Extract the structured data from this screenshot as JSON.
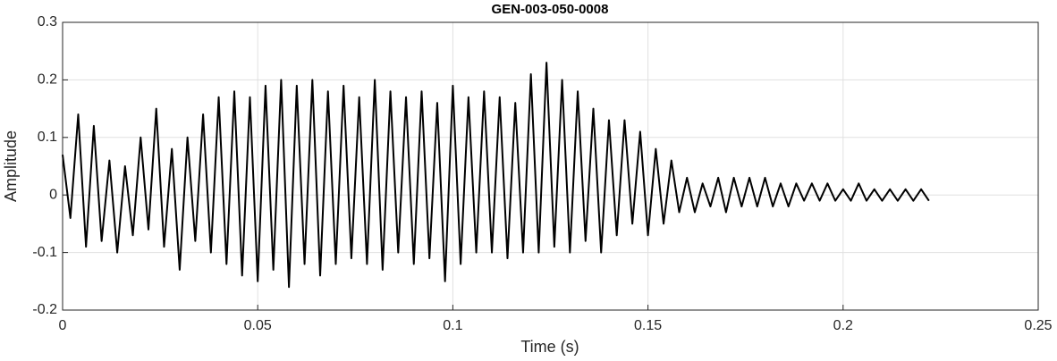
{
  "chart_data": {
    "type": "line",
    "title": "GEN-003-050-0008",
    "xlabel": "Time (s)",
    "ylabel": "Amplitude",
    "x": [
      0,
      0.002,
      0.004,
      0.006,
      0.008,
      0.01,
      0.012,
      0.014,
      0.016,
      0.018,
      0.02,
      0.022,
      0.024,
      0.026,
      0.028,
      0.03,
      0.032,
      0.034,
      0.036,
      0.038,
      0.04,
      0.042,
      0.044,
      0.046,
      0.048,
      0.05,
      0.052,
      0.054,
      0.056,
      0.058,
      0.06,
      0.062,
      0.064,
      0.066,
      0.068,
      0.07,
      0.072,
      0.074,
      0.076,
      0.078,
      0.08,
      0.082,
      0.084,
      0.086,
      0.088,
      0.09,
      0.092,
      0.094,
      0.096,
      0.098,
      0.1,
      0.102,
      0.104,
      0.106,
      0.108,
      0.11,
      0.112,
      0.114,
      0.116,
      0.118,
      0.12,
      0.122,
      0.124,
      0.126,
      0.128,
      0.13,
      0.132,
      0.134,
      0.136,
      0.138,
      0.14,
      0.142,
      0.144,
      0.146,
      0.148,
      0.15,
      0.152,
      0.154,
      0.156,
      0.158,
      0.16,
      0.162,
      0.164,
      0.166,
      0.168,
      0.17,
      0.172,
      0.174,
      0.176,
      0.178,
      0.18,
      0.182,
      0.184,
      0.186,
      0.188,
      0.19,
      0.192,
      0.194,
      0.196,
      0.198,
      0.2,
      0.202,
      0.204,
      0.206,
      0.208,
      0.21,
      0.212,
      0.214,
      0.216,
      0.218,
      0.22,
      0.222
    ],
    "series": [
      {
        "name": "Amplitude",
        "color": "#000000",
        "values": [
          0.07,
          -0.04,
          0.14,
          -0.09,
          0.12,
          -0.08,
          0.06,
          -0.1,
          0.05,
          -0.07,
          0.1,
          -0.06,
          0.15,
          -0.09,
          0.08,
          -0.13,
          0.1,
          -0.08,
          0.14,
          -0.1,
          0.17,
          -0.12,
          0.18,
          -0.14,
          0.17,
          -0.15,
          0.19,
          -0.13,
          0.2,
          -0.16,
          0.19,
          -0.12,
          0.2,
          -0.14,
          0.18,
          -0.12,
          0.19,
          -0.11,
          0.17,
          -0.12,
          0.2,
          -0.13,
          0.18,
          -0.1,
          0.17,
          -0.12,
          0.18,
          -0.11,
          0.16,
          -0.15,
          0.19,
          -0.12,
          0.17,
          -0.1,
          0.18,
          -0.1,
          0.17,
          -0.11,
          0.16,
          -0.1,
          0.21,
          -0.1,
          0.23,
          -0.09,
          0.2,
          -0.1,
          0.18,
          -0.08,
          0.15,
          -0.1,
          0.13,
          -0.07,
          0.13,
          -0.05,
          0.11,
          -0.07,
          0.08,
          -0.05,
          0.06,
          -0.03,
          0.03,
          -0.03,
          0.02,
          -0.02,
          0.03,
          -0.03,
          0.03,
          -0.02,
          0.03,
          -0.02,
          0.03,
          -0.02,
          0.02,
          -0.02,
          0.02,
          -0.01,
          0.02,
          -0.01,
          0.02,
          -0.01,
          0.01,
          -0.01,
          0.02,
          -0.01,
          0.01,
          -0.01,
          0.01,
          -0.01,
          0.01,
          -0.01,
          0.01,
          -0.01
        ]
      }
    ],
    "xlim": [
      0,
      0.25
    ],
    "xticks": [
      0,
      0.05,
      0.1,
      0.15,
      0.2,
      0.25
    ],
    "ylim": [
      -0.2,
      0.3
    ],
    "yticks": [
      -0.2,
      -0.1,
      0,
      0.1,
      0.2,
      0.3
    ],
    "grid": true
  }
}
